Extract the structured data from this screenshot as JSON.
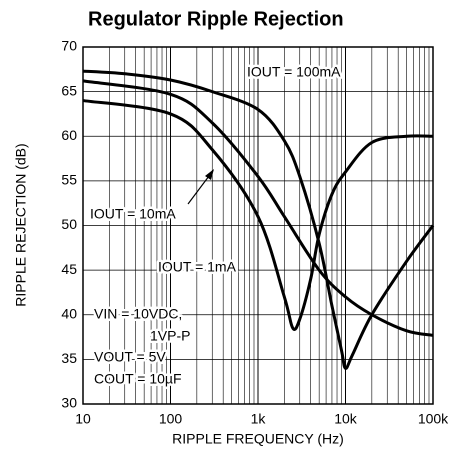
{
  "chart_data": {
    "type": "line",
    "title": "Regulator Ripple Rejection",
    "xlabel": "RIPPLE FREQUENCY (Hz)",
    "ylabel": "RIPPLE REJECTION (dB)",
    "xscale": "log",
    "xlim": [
      10,
      100000
    ],
    "xticks": [
      10,
      100,
      {
        "value": 1000,
        "label": "1k"
      },
      {
        "value": 10000,
        "label": "10k"
      },
      {
        "value": 100000,
        "label": "100k"
      }
    ],
    "ylim": [
      30,
      70
    ],
    "yticks": [
      30,
      35,
      40,
      45,
      50,
      55,
      60,
      65,
      70
    ],
    "grid": true,
    "series": [
      {
        "name": "IOUT = 100mA",
        "color": "#000000",
        "x": [
          10,
          30,
          100,
          300,
          1000,
          2000,
          3000,
          5000,
          7000,
          9000,
          10000,
          12000,
          20000,
          50000,
          100000
        ],
        "values": [
          67.3,
          67,
          66.3,
          65,
          63,
          59.5,
          55.5,
          48,
          41,
          36,
          34,
          35.5,
          40,
          46,
          50
        ]
      },
      {
        "name": "IOUT = 1mA",
        "color": "#000000",
        "x": [
          10,
          100,
          300,
          1000,
          2000,
          5000,
          10000,
          20000,
          50000,
          100000
        ],
        "values": [
          66.2,
          64.7,
          61.5,
          55.5,
          51,
          45,
          42,
          40,
          38.2,
          37.7
        ]
      },
      {
        "name": "IOUT = 10mA",
        "color": "#000000",
        "x": [
          10,
          100,
          300,
          1000,
          2000,
          2500,
          3000,
          4000,
          5000,
          7000,
          10000,
          20000,
          50000,
          100000
        ],
        "values": [
          64,
          62.5,
          58.5,
          51,
          42,
          38.5,
          39.5,
          44,
          49,
          53.5,
          56,
          59.3,
          60,
          60
        ]
      }
    ],
    "annotations": [
      "VIN = 10VDC,",
      "1VP-P",
      "VOUT = 5V",
      "COUT = 10µF"
    ]
  }
}
